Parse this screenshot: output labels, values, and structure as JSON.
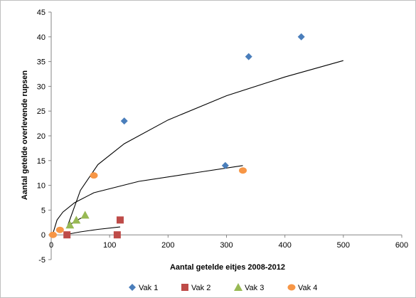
{
  "chart_data": {
    "type": "scatter",
    "title": "",
    "xlabel": "Aantal getelde eitjes 2008-2012",
    "ylabel": "Aantal getelde overlevende rupsen",
    "xlim": [
      0,
      600
    ],
    "ylim": [
      -5,
      45
    ],
    "xticks": [
      0,
      100,
      200,
      300,
      400,
      500,
      600
    ],
    "yticks": [
      -5,
      0,
      5,
      10,
      15,
      20,
      25,
      30,
      35,
      40,
      45
    ],
    "grid": false,
    "legend_position": "bottom",
    "series": [
      {
        "name": "Vak 1",
        "marker": "diamond",
        "color": "#4a7ebb",
        "points": [
          [
            125,
            23
          ],
          [
            298,
            14
          ],
          [
            338,
            36
          ],
          [
            428,
            40
          ]
        ]
      },
      {
        "name": "Vak 2",
        "marker": "square",
        "color": "#be4b48",
        "points": [
          [
            27,
            0
          ],
          [
            113,
            0
          ],
          [
            118,
            3
          ]
        ]
      },
      {
        "name": "Vak 3",
        "marker": "triangle",
        "color": "#98b954",
        "points": [
          [
            32,
            2
          ],
          [
            43,
            3
          ],
          [
            58,
            4
          ]
        ]
      },
      {
        "name": "Vak 4",
        "marker": "circle",
        "color": "#f79646",
        "points": [
          [
            3,
            0
          ],
          [
            15,
            1
          ],
          [
            73,
            12
          ],
          [
            328,
            13
          ]
        ]
      }
    ],
    "trendlines": [
      {
        "series": "Vak 1",
        "type": "power",
        "color": "#000000",
        "points": [
          [
            28,
            1.8
          ],
          [
            50,
            9.0
          ],
          [
            80,
            14.2
          ],
          [
            125,
            18.4
          ],
          [
            200,
            23.2
          ],
          [
            300,
            28.1
          ],
          [
            400,
            31.9
          ],
          [
            500,
            35.2
          ]
        ]
      },
      {
        "series": "Vak 4",
        "type": "power",
        "color": "#000000",
        "points": [
          [
            3,
            0.3
          ],
          [
            10,
            3.0
          ],
          [
            20,
            4.6
          ],
          [
            40,
            6.5
          ],
          [
            73,
            8.5
          ],
          [
            150,
            10.8
          ],
          [
            250,
            12.6
          ],
          [
            328,
            14.0
          ]
        ]
      },
      {
        "series": "Vak 3",
        "type": "power",
        "color": "#000000",
        "points": [
          [
            28,
            1.5
          ],
          [
            35,
            2.3
          ],
          [
            45,
            3.0
          ],
          [
            58,
            3.8
          ]
        ]
      },
      {
        "series": "Vak 2",
        "type": "power",
        "color": "#000000",
        "points": [
          [
            27,
            0.1
          ],
          [
            50,
            0.6
          ],
          [
            80,
            1.1
          ],
          [
            118,
            1.6
          ]
        ]
      }
    ]
  }
}
